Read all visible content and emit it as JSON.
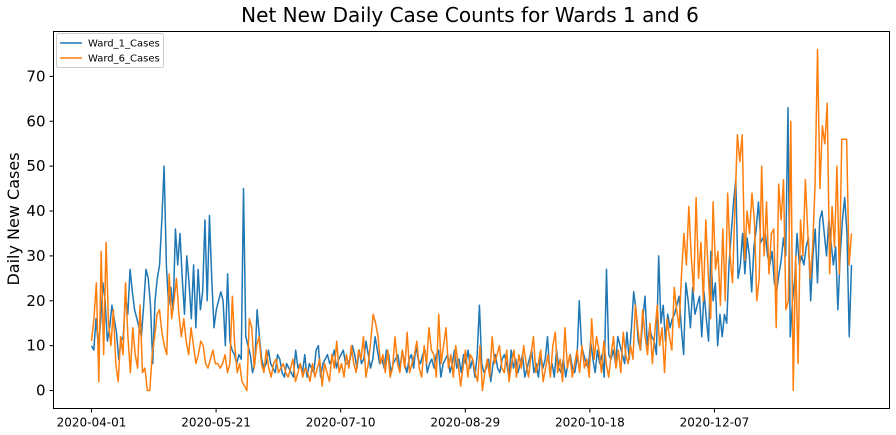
{
  "chart_data": {
    "type": "line",
    "title": "Net New Daily Case Counts for Wards 1 and 6",
    "xlabel": "",
    "ylabel": "Daily New Cases",
    "x_start": "2020-04-01",
    "x_end": "2021-01-31",
    "x_ticks": [
      "2020-04-01",
      "2020-05-21",
      "2020-07-10",
      "2020-08-29",
      "2020-10-18",
      "2020-12-07"
    ],
    "y_ticks": [
      0,
      10,
      20,
      30,
      40,
      50,
      60,
      70
    ],
    "ylim": [
      -4,
      80
    ],
    "grid": false,
    "legend_position": "top-left",
    "series": [
      {
        "name": "Ward_1_Cases",
        "color": "#1f77b4",
        "values": [
          10,
          9,
          16,
          10,
          15,
          24,
          20,
          11,
          14,
          19,
          16,
          13,
          7,
          11,
          12,
          21,
          17,
          27,
          22,
          18,
          16,
          14,
          12,
          19,
          27,
          25,
          19,
          6,
          20,
          25,
          28,
          38,
          50,
          28,
          19,
          23,
          18,
          36,
          28,
          35,
          25,
          17,
          30,
          24,
          16,
          28,
          14,
          27,
          18,
          22,
          38,
          20,
          39,
          25,
          14,
          18,
          20,
          22,
          20,
          10,
          26,
          11,
          9,
          8,
          6,
          8,
          7,
          45,
          12,
          10,
          8,
          4,
          6,
          18,
          12,
          7,
          5,
          6,
          9,
          6,
          5,
          4,
          8,
          7,
          4,
          3,
          6,
          5,
          4,
          3,
          9,
          5,
          6,
          4,
          8,
          3,
          6,
          5,
          4,
          9,
          10,
          3,
          6,
          7,
          8,
          6,
          7,
          9,
          5,
          7,
          8,
          9,
          6,
          6,
          7,
          10,
          8,
          5,
          9,
          6,
          7,
          11,
          8,
          5,
          7,
          12,
          9,
          6,
          7,
          5,
          9,
          8,
          4,
          6,
          7,
          8,
          5,
          9,
          6,
          4,
          7,
          8,
          5,
          10,
          7,
          6,
          8,
          9,
          4,
          6,
          7,
          5,
          8,
          9,
          3,
          6,
          7,
          8,
          4,
          6,
          9,
          5,
          7,
          4,
          8,
          6,
          9,
          5,
          7,
          3,
          8,
          19,
          6,
          4,
          5,
          7,
          2,
          6,
          8,
          5,
          4,
          7,
          8,
          6,
          3,
          9,
          5,
          7,
          4,
          6,
          8,
          3,
          5,
          7,
          9,
          4,
          6,
          3,
          8,
          5,
          7,
          12,
          4,
          6,
          3,
          9,
          5,
          4,
          7,
          3,
          6,
          8,
          5,
          4,
          7,
          20,
          10,
          8,
          6,
          5,
          11,
          7,
          4,
          9,
          6,
          8,
          3,
          27,
          8,
          7,
          9,
          6,
          12,
          10,
          8,
          6,
          13,
          7,
          14,
          22,
          18,
          11,
          9,
          16,
          21,
          10,
          14,
          12,
          11,
          8,
          30,
          15,
          19,
          11,
          17,
          14,
          16,
          17,
          19,
          21,
          14,
          8,
          24,
          20,
          14,
          23,
          17,
          19,
          21,
          12,
          22,
          16,
          11,
          31,
          20,
          24,
          10,
          17,
          12,
          17,
          15,
          28,
          35,
          42,
          47,
          25,
          28,
          35,
          26,
          34,
          30,
          22,
          32,
          36,
          42,
          33,
          34,
          35,
          30,
          28,
          31,
          24,
          22,
          26,
          29,
          34,
          30,
          63,
          12,
          20,
          25,
          35,
          28,
          30,
          28,
          32,
          34,
          20,
          30,
          36,
          24,
          38,
          40,
          35,
          30,
          38,
          33,
          28,
          32,
          18,
          30,
          38,
          43,
          35,
          12,
          28
        ]
      },
      {
        "name": "Ward_6_Cases",
        "color": "#ff7f0e",
        "values": [
          11,
          16,
          24,
          2,
          31,
          8,
          33,
          15,
          10,
          18,
          6,
          2,
          12,
          8,
          24,
          12,
          4,
          14,
          8,
          5,
          19,
          4,
          5,
          0,
          0,
          8,
          12,
          17,
          18,
          13,
          10,
          8,
          26,
          16,
          20,
          25,
          17,
          12,
          16,
          11,
          8,
          14,
          10,
          6,
          8,
          11,
          10,
          6,
          5,
          7,
          9,
          6,
          6,
          5,
          6,
          8,
          4,
          6,
          21,
          10,
          4,
          6,
          2,
          1,
          0,
          16,
          14,
          5,
          10,
          12,
          6,
          4,
          9,
          5,
          3,
          6,
          7,
          4,
          5,
          6,
          4,
          3,
          5,
          7,
          2,
          4,
          6,
          3,
          5,
          4,
          2,
          6,
          3,
          5,
          7,
          1,
          6,
          4,
          2,
          8,
          5,
          11,
          4,
          6,
          3,
          8,
          5,
          10,
          6,
          4,
          9,
          7,
          12,
          3,
          6,
          11,
          17,
          15,
          12,
          6,
          8,
          4,
          9,
          3,
          5,
          12,
          6,
          4,
          9,
          5,
          13,
          4,
          6,
          8,
          11,
          5,
          3,
          10,
          6,
          14,
          9,
          8,
          3,
          17,
          6,
          10,
          14,
          5,
          8,
          3,
          10,
          6,
          1,
          5,
          9,
          3,
          8,
          7,
          4,
          2,
          10,
          0,
          4,
          7,
          3,
          12,
          6,
          8,
          10,
          5,
          4,
          9,
          2,
          6,
          9,
          3,
          8,
          5,
          10,
          6,
          3,
          8,
          12,
          4,
          6,
          9,
          2,
          5,
          8,
          3,
          10,
          13,
          4,
          7,
          2,
          14,
          5,
          8,
          3,
          6,
          9,
          4,
          10,
          5,
          7,
          3,
          16,
          7,
          12,
          9,
          4,
          11,
          6,
          3,
          8,
          12,
          5,
          9,
          4,
          13,
          8,
          6,
          10,
          7,
          19,
          14,
          9,
          18,
          12,
          8,
          15,
          6,
          13,
          19,
          10,
          14,
          4,
          16,
          12,
          9,
          23,
          18,
          14,
          26,
          35,
          28,
          41,
          30,
          22,
          43,
          25,
          33,
          20,
          38,
          26,
          16,
          42,
          27,
          31,
          19,
          36,
          20,
          44,
          30,
          24,
          41,
          57,
          51,
          57,
          29,
          40,
          35,
          44,
          38,
          20,
          25,
          50,
          30,
          42,
          26,
          35,
          36,
          14,
          46,
          38,
          47,
          18,
          20,
          60,
          0,
          30,
          6,
          38,
          30,
          47,
          35,
          25,
          32,
          46,
          76,
          45,
          59,
          55,
          64,
          26,
          41,
          32,
          50,
          26,
          56,
          56,
          56,
          28,
          35
        ]
      }
    ]
  }
}
